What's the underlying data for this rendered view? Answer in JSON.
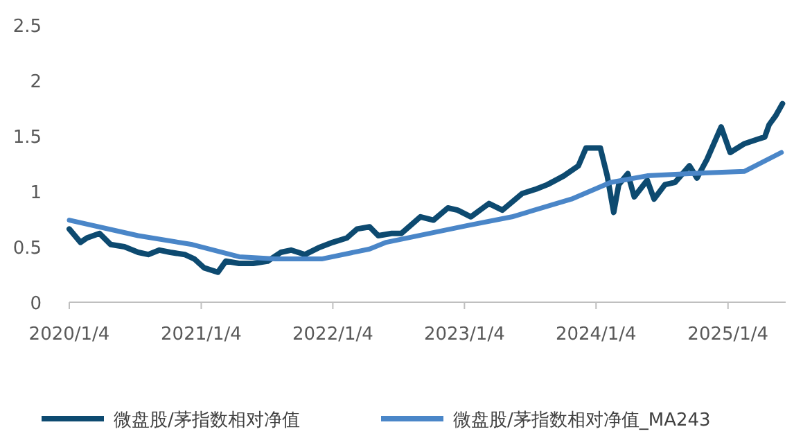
{
  "chart_data": {
    "type": "line",
    "xlim": [
      "2020-01-04",
      "2025-06-13"
    ],
    "ylim": [
      0,
      2.5
    ],
    "yticks": [
      0,
      0.5,
      1,
      1.5,
      2,
      2.5
    ],
    "xticks": [
      {
        "value": "2020-01-04",
        "label": "2020/1/4"
      },
      {
        "value": "2021-01-04",
        "label": "2021/1/4"
      },
      {
        "value": "2022-01-04",
        "label": "2022/1/4"
      },
      {
        "value": "2023-01-04",
        "label": "2023/1/4"
      },
      {
        "value": "2024-01-04",
        "label": "2024/1/4"
      },
      {
        "value": "2025-01-04",
        "label": "2025/1/4"
      }
    ],
    "grid": false,
    "legend": "bottom",
    "marker": "none",
    "line_style": "solid",
    "series": [
      {
        "name": "微盘股/茅指数相对净值",
        "color": "#0d4a70",
        "x": [
          "2020-01-04",
          "2020-02-04",
          "2020-02-22",
          "2020-03-28",
          "2020-04-28",
          "2020-06-05",
          "2020-07-13",
          "2020-08-10",
          "2020-09-10",
          "2020-10-10",
          "2020-11-19",
          "2020-12-16",
          "2021-01-12",
          "2021-02-19",
          "2021-03-13",
          "2021-04-19",
          "2021-05-28",
          "2021-07-07",
          "2021-08-13",
          "2021-09-10",
          "2021-10-19",
          "2021-11-25",
          "2022-01-04",
          "2022-02-12",
          "2022-03-12",
          "2022-04-16",
          "2022-05-10",
          "2022-06-16",
          "2022-07-13",
          "2022-09-04",
          "2022-10-10",
          "2022-11-19",
          "2022-12-16",
          "2023-01-22",
          "2023-03-13",
          "2023-04-19",
          "2023-06-13",
          "2023-07-22",
          "2023-08-22",
          "2023-10-07",
          "2023-11-16",
          "2023-12-07",
          "2024-01-16",
          "2024-02-04",
          "2024-02-22",
          "2024-03-07",
          "2024-04-01",
          "2024-04-19",
          "2024-05-25",
          "2024-06-13",
          "2024-07-13",
          "2024-08-10",
          "2024-09-19",
          "2024-10-10",
          "2024-11-07",
          "2024-12-16",
          "2025-01-10",
          "2025-02-19",
          "2025-03-28",
          "2025-04-16",
          "2025-04-28",
          "2025-05-16",
          "2025-06-04"
        ],
        "values": [
          0.66,
          0.54,
          0.58,
          0.62,
          0.52,
          0.5,
          0.45,
          0.43,
          0.47,
          0.45,
          0.43,
          0.39,
          0.31,
          0.27,
          0.37,
          0.35,
          0.35,
          0.37,
          0.45,
          0.47,
          0.43,
          0.49,
          0.54,
          0.58,
          0.66,
          0.68,
          0.6,
          0.62,
          0.62,
          0.77,
          0.74,
          0.85,
          0.83,
          0.77,
          0.89,
          0.83,
          0.98,
          1.02,
          1.06,
          1.14,
          1.23,
          1.39,
          1.39,
          1.14,
          0.81,
          1.06,
          1.16,
          0.95,
          1.1,
          0.93,
          1.06,
          1.08,
          1.23,
          1.12,
          1.29,
          1.58,
          1.35,
          1.43,
          1.47,
          1.49,
          1.6,
          1.68,
          1.79
        ]
      },
      {
        "name": "微盘股/茅指数相对净值_MA243",
        "color": "#4a86c8",
        "x": [
          "2020-01-04",
          "2020-07-13",
          "2020-12-10",
          "2021-04-19",
          "2021-07-28",
          "2021-12-04",
          "2022-04-16",
          "2022-06-01",
          "2023-01-10",
          "2023-05-16",
          "2023-10-28",
          "2024-02-13",
          "2024-05-25",
          "2024-09-19",
          "2025-02-19",
          "2025-06-01"
        ],
        "values": [
          0.74,
          0.6,
          0.52,
          0.41,
          0.39,
          0.39,
          0.48,
          0.54,
          0.69,
          0.77,
          0.93,
          1.08,
          1.14,
          1.16,
          1.18,
          1.35
        ]
      }
    ]
  }
}
